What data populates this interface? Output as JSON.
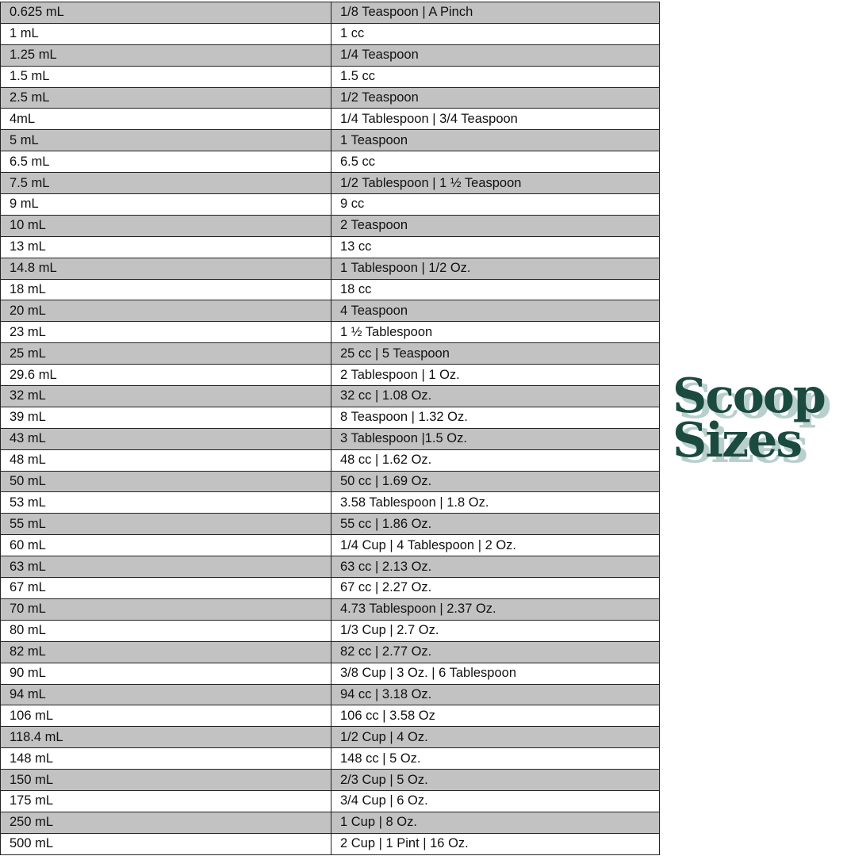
{
  "title": {
    "line1": "Scoop",
    "line2": "Sizes",
    "color": "#1b4a3e",
    "shadow_color": "#b9cfcc"
  },
  "rows": [
    [
      "0.625 mL",
      "1/8 Teaspoon | A Pinch"
    ],
    [
      "1 mL",
      "1 cc"
    ],
    [
      "1.25 mL",
      "1/4 Teaspoon"
    ],
    [
      "1.5 mL",
      "1.5 cc"
    ],
    [
      "2.5 mL",
      "1/2 Teaspoon"
    ],
    [
      "4mL",
      "1/4 Tablespoon | 3/4 Teaspoon"
    ],
    [
      "5 mL",
      "1 Teaspoon"
    ],
    [
      "6.5 mL",
      "6.5 cc"
    ],
    [
      "7.5 mL",
      "1/2 Tablespoon | 1 ½ Teaspoon"
    ],
    [
      "9 mL",
      "9 cc"
    ],
    [
      "10 mL",
      "2 Teaspoon"
    ],
    [
      "13 mL",
      "13 cc"
    ],
    [
      "14.8 mL",
      "1 Tablespoon | 1/2 Oz."
    ],
    [
      "18 mL",
      "18 cc"
    ],
    [
      "20 mL",
      "4 Teaspoon"
    ],
    [
      "23 mL",
      "1 ½ Tablespoon"
    ],
    [
      "25 mL",
      "25 cc | 5 Teaspoon"
    ],
    [
      "29.6 mL",
      "2 Tablespoon | 1 Oz."
    ],
    [
      "32 mL",
      "32 cc | 1.08 Oz."
    ],
    [
      "39 mL",
      "8 Teaspoon | 1.32 Oz."
    ],
    [
      "43 mL",
      "3 Tablespoon |1.5 Oz."
    ],
    [
      "48 mL",
      "48 cc | 1.62 Oz."
    ],
    [
      "50 mL",
      "50 cc | 1.69 Oz."
    ],
    [
      "53 mL",
      "3.58 Tablespoon | 1.8 Oz."
    ],
    [
      "55 mL",
      "55 cc | 1.86 Oz."
    ],
    [
      "60 mL",
      "1/4 Cup | 4 Tablespoon | 2 Oz."
    ],
    [
      "63 mL",
      "63 cc | 2.13 Oz."
    ],
    [
      "67 mL",
      "67 cc | 2.27 Oz."
    ],
    [
      "70 mL",
      "4.73 Tablespoon | 2.37 Oz."
    ],
    [
      "80 mL",
      "1/3 Cup | 2.7 Oz."
    ],
    [
      "82 mL",
      "82 cc | 2.77 Oz."
    ],
    [
      "90 mL",
      "3/8 Cup | 3 Oz. | 6 Tablespoon"
    ],
    [
      "94 mL",
      "94 cc | 3.18 Oz."
    ],
    [
      "106 mL",
      "106 cc | 3.58 Oz"
    ],
    [
      "118.4 mL",
      "1/2 Cup | 4 Oz."
    ],
    [
      "148 mL",
      "148 cc | 5 Oz."
    ],
    [
      "150 mL",
      "2/3 Cup | 5 Oz."
    ],
    [
      "175 mL",
      "3/4 Cup | 6 Oz."
    ],
    [
      "250 mL",
      "1 Cup | 8 Oz."
    ],
    [
      "500 mL",
      "2 Cup | 1 Pint | 16 Oz."
    ]
  ]
}
